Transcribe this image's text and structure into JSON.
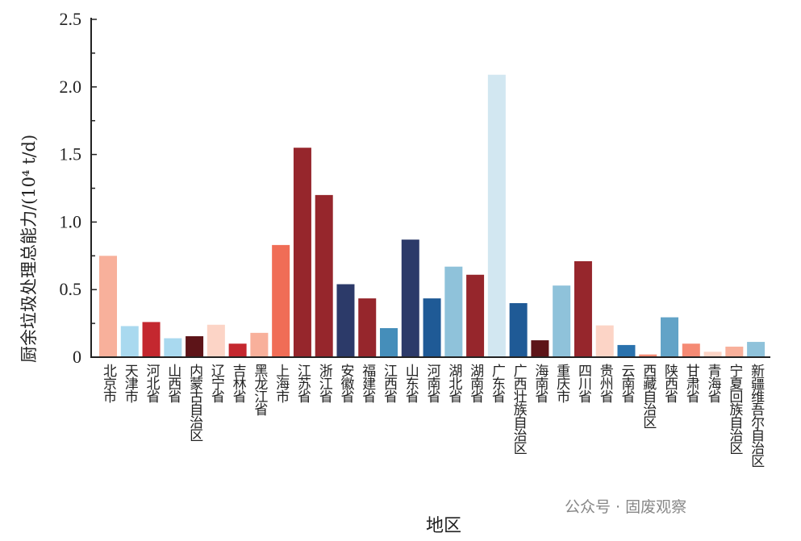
{
  "chart_data": {
    "type": "bar",
    "title": "",
    "xlabel": "地区",
    "ylabel": "厨余垃圾处理总能力/(10⁴ t/d)",
    "ylim": [
      0,
      2.5
    ],
    "yticks": [
      "0",
      "0.5",
      "1.0",
      "1.5",
      "2.0",
      "2.5"
    ],
    "grid": false,
    "categories": [
      "北京市",
      "天津市",
      "河北省",
      "山西省",
      "内蒙古自治区",
      "辽宁省",
      "吉林省",
      "黑龙江省",
      "上海市",
      "江苏省",
      "浙江省",
      "安徽省",
      "福建省",
      "江西省",
      "山东省",
      "河南省",
      "湖北省",
      "湖南省",
      "广东省",
      "广西壮族自治区",
      "海南省",
      "重庆市",
      "四川省",
      "贵州省",
      "云南省",
      "西藏自治区",
      "陕西省",
      "甘肃省",
      "青海省",
      "宁夏回族自治区",
      "新疆维吾尔自治区"
    ],
    "values": [
      0.75,
      0.23,
      0.26,
      0.14,
      0.155,
      0.24,
      0.1,
      0.18,
      0.83,
      1.55,
      1.2,
      0.54,
      0.435,
      0.215,
      0.87,
      0.435,
      0.67,
      0.61,
      2.09,
      0.4,
      0.125,
      0.53,
      0.71,
      0.235,
      0.09,
      0.02,
      0.295,
      0.1,
      0.04,
      0.078,
      0.113
    ],
    "colors": [
      "#f8b09b",
      "#a9d9ef",
      "#c4282f",
      "#a9d9ef",
      "#5d1418",
      "#fcd4c6",
      "#c4282f",
      "#f8b09b",
      "#f06d56",
      "#96262c",
      "#96262c",
      "#2c3a69",
      "#96262c",
      "#458eba",
      "#2c3a69",
      "#1f5a96",
      "#8fc2da",
      "#96262c",
      "#d2e7f1",
      "#1f5a96",
      "#5d1418",
      "#8fc2da",
      "#96262c",
      "#fcd4c6",
      "#2a72ad",
      "#f58a74",
      "#62a3c7",
      "#f58a74",
      "#fcd4c6",
      "#f8b09b",
      "#8fc2da"
    ]
  },
  "watermark": "公众号 · 固废观察"
}
